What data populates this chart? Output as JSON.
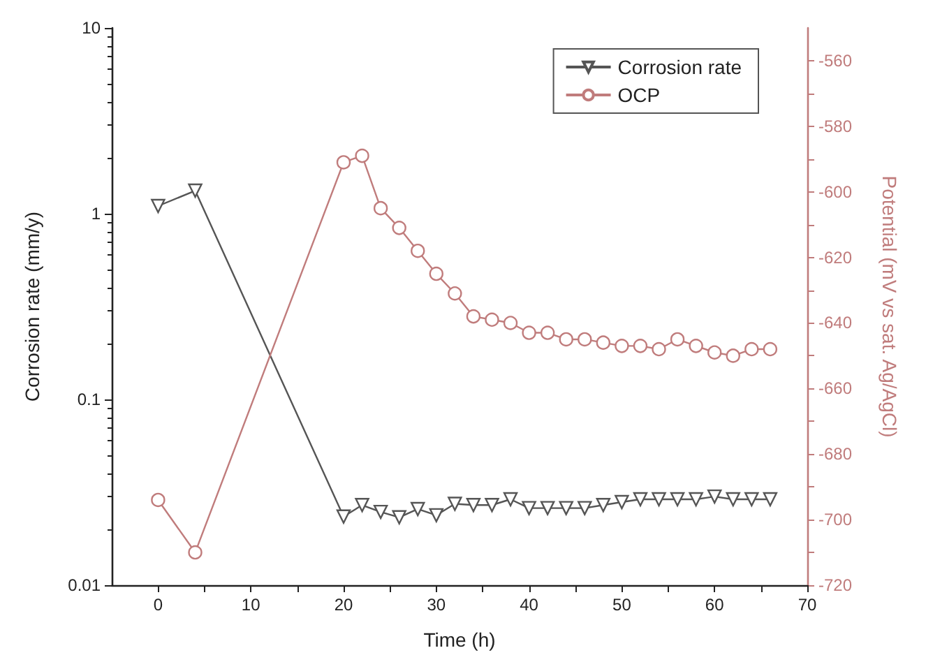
{
  "chart_data": {
    "type": "line",
    "xlabel": "Time (h)",
    "ylabel": "Corrosion rate (mm/y)",
    "y2label": "Potential (mV vs sat. Ag/AgCl)",
    "xlim": [
      -5,
      70
    ],
    "xticks": [
      0,
      {
        "value": 5,
        "label": null
      },
      10,
      {
        "value": 15,
        "label": null
      },
      20,
      {
        "value": 25,
        "label": null
      },
      30,
      {
        "value": 35,
        "label": null
      },
      40,
      {
        "value": 45,
        "label": null
      },
      50,
      {
        "value": 55,
        "label": null
      },
      60,
      {
        "value": 65,
        "label": null
      },
      70
    ],
    "ylim": [
      0.01,
      10
    ],
    "yticks": [
      0.01,
      0.1,
      1,
      10
    ],
    "log": "y",
    "y2lim": [
      -720,
      -550
    ],
    "y2ticks": [
      -720,
      {
        "value": -710,
        "label": null
      },
      -700,
      {
        "value": -690,
        "label": null
      },
      -680,
      {
        "value": -670,
        "label": null
      },
      -660,
      {
        "value": -650,
        "label": null
      },
      -640,
      {
        "value": -630,
        "label": null
      },
      -620,
      {
        "value": -610,
        "label": null
      },
      -600,
      {
        "value": -590,
        "label": null
      },
      -580,
      {
        "value": -570,
        "label": null
      },
      -560
    ],
    "grid": false,
    "legend": "top right",
    "line_style": "solid",
    "series": [
      {
        "name": "Corrosion rate",
        "color": "#555555",
        "marker": "triangle",
        "x": [
          0,
          4,
          20,
          22,
          24,
          26,
          28,
          30,
          32,
          34,
          36,
          38,
          40,
          42,
          44,
          46,
          48,
          50,
          52,
          54,
          56,
          58,
          60,
          62,
          64,
          66
        ],
        "values": [
          1.1,
          1.33,
          0.0234,
          0.027,
          0.0248,
          0.0232,
          0.0257,
          0.0238,
          0.0274,
          0.027,
          0.027,
          0.029,
          0.026,
          0.026,
          0.026,
          0.026,
          0.027,
          0.028,
          0.029,
          0.029,
          0.029,
          0.029,
          0.03,
          0.029,
          0.029,
          0.029
        ]
      },
      {
        "name": "OCP",
        "color": "#c07c7c",
        "marker": "circle",
        "axis": "y2",
        "x": [
          0,
          4,
          20,
          22,
          24,
          26,
          28,
          30,
          32,
          34,
          36,
          38,
          40,
          42,
          44,
          46,
          48,
          50,
          52,
          54,
          56,
          58,
          60,
          62,
          64,
          66
        ],
        "values": [
          -694,
          -710,
          -591,
          -589,
          -605,
          -611,
          -618,
          -625,
          -631,
          -638,
          -639,
          -640,
          -643,
          -643,
          -645,
          -645,
          -646,
          -647,
          -647,
          -648,
          -645,
          -647,
          -649,
          -650,
          -648,
          -648
        ]
      }
    ]
  }
}
